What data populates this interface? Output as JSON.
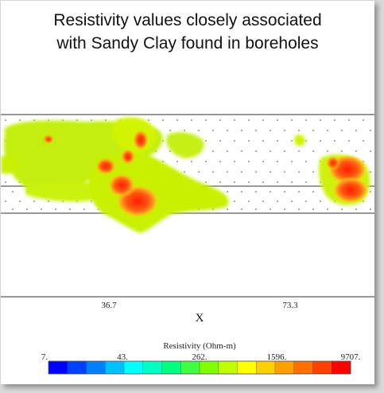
{
  "title_line1": "Resistivity values closely associated",
  "title_line2": "with Sandy Clay found in boreholes",
  "chart_data": {
    "type": "heatmap",
    "x_label": "X",
    "x_ticks": [
      "36.7",
      "73.3"
    ],
    "colorbar": {
      "title": "Resistivity (Ohm-m)",
      "tick_labels": [
        "7.",
        "43.",
        "262.",
        "1596.",
        "9707."
      ],
      "scale": "log",
      "colors": [
        "#0000ff",
        "#0040ff",
        "#0080ff",
        "#00c0ff",
        "#00ffff",
        "#00ffc0",
        "#00ff80",
        "#40ff40",
        "#80ff00",
        "#c0ff00",
        "#ffff00",
        "#ffd000",
        "#ffa000",
        "#ff7000",
        "#ff4000",
        "#ff0000"
      ]
    },
    "regions": [
      {
        "name": "left-main",
        "level": "low-mid",
        "color": "#c8f000"
      },
      {
        "name": "center-cluster",
        "level": "high",
        "color": "#ff3a1a"
      },
      {
        "name": "right-cluster",
        "level": "high",
        "color": "#ff2a10"
      }
    ]
  }
}
